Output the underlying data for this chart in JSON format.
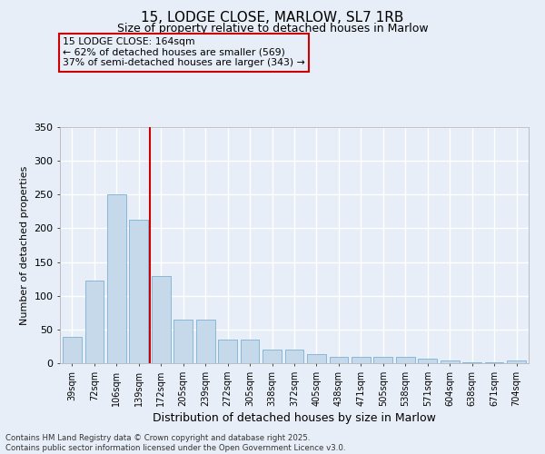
{
  "title": "15, LODGE CLOSE, MARLOW, SL7 1RB",
  "subtitle": "Size of property relative to detached houses in Marlow",
  "xlabel": "Distribution of detached houses by size in Marlow",
  "ylabel": "Number of detached properties",
  "categories": [
    "39sqm",
    "72sqm",
    "106sqm",
    "139sqm",
    "172sqm",
    "205sqm",
    "239sqm",
    "272sqm",
    "305sqm",
    "338sqm",
    "372sqm",
    "405sqm",
    "438sqm",
    "471sqm",
    "505sqm",
    "538sqm",
    "571sqm",
    "604sqm",
    "638sqm",
    "671sqm",
    "704sqm"
  ],
  "values": [
    39,
    122,
    251,
    213,
    129,
    65,
    65,
    35,
    35,
    20,
    20,
    13,
    10,
    9,
    9,
    9,
    7,
    4,
    2,
    1,
    4
  ],
  "bar_color": "#c5d9eb",
  "bar_edge_color": "#7ab0d4",
  "vline_position": 3.5,
  "vline_color": "#cc0000",
  "annotation_line1": "15 LODGE CLOSE: 164sqm",
  "annotation_line2": "← 62% of detached houses are smaller (569)",
  "annotation_line3": "37% of semi-detached houses are larger (343) →",
  "annotation_box_color": "#cc0000",
  "ylim": [
    0,
    350
  ],
  "yticks": [
    0,
    50,
    100,
    150,
    200,
    250,
    300,
    350
  ],
  "footer_text": "Contains HM Land Registry data © Crown copyright and database right 2025.\nContains public sector information licensed under the Open Government Licence v3.0.",
  "bg_color": "#e8eef7",
  "grid_color": "#ffffff",
  "title_fontsize": 11,
  "subtitle_fontsize": 9,
  "tick_fontsize": 7,
  "ylabel_fontsize": 8,
  "xlabel_fontsize": 9
}
